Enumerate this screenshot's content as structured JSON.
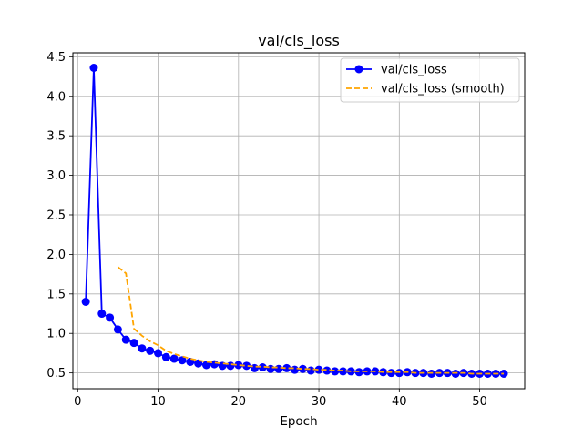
{
  "chart_data": {
    "type": "line",
    "title": "val/cls_loss",
    "xlabel": "Epoch",
    "ylabel": "",
    "xlim": [
      -0.6,
      55.6
    ],
    "ylim": [
      0.3,
      4.55
    ],
    "xticks": [
      0,
      10,
      20,
      30,
      40,
      50
    ],
    "yticks": [
      0.5,
      1.0,
      1.5,
      2.0,
      2.5,
      3.0,
      3.5,
      4.0,
      4.5
    ],
    "xtick_labels": [
      "0",
      "10",
      "20",
      "30",
      "40",
      "50"
    ],
    "ytick_labels": [
      "0.5",
      "1.0",
      "1.5",
      "2.0",
      "2.5",
      "3.0",
      "3.5",
      "4.0",
      "4.5"
    ],
    "grid": true,
    "legend_position": "top-right",
    "series": [
      {
        "name": "val/cls_loss",
        "color": "#0000ff",
        "style": "solid",
        "marker": "circle",
        "x": [
          1,
          2,
          3,
          4,
          5,
          6,
          7,
          8,
          9,
          10,
          11,
          12,
          13,
          14,
          15,
          16,
          17,
          18,
          19,
          20,
          21,
          22,
          23,
          24,
          25,
          26,
          27,
          28,
          29,
          30,
          31,
          32,
          33,
          34,
          35,
          36,
          37,
          38,
          39,
          40,
          41,
          42,
          43,
          44,
          45,
          46,
          47,
          48,
          49,
          50,
          51,
          52,
          53
        ],
        "y": [
          1.4,
          4.36,
          1.25,
          1.2,
          1.05,
          0.92,
          0.88,
          0.81,
          0.78,
          0.75,
          0.7,
          0.68,
          0.66,
          0.64,
          0.62,
          0.6,
          0.61,
          0.59,
          0.59,
          0.6,
          0.59,
          0.56,
          0.57,
          0.55,
          0.55,
          0.56,
          0.54,
          0.55,
          0.53,
          0.54,
          0.53,
          0.52,
          0.52,
          0.52,
          0.51,
          0.52,
          0.52,
          0.51,
          0.5,
          0.5,
          0.51,
          0.5,
          0.5,
          0.49,
          0.5,
          0.5,
          0.49,
          0.5,
          0.49,
          0.49,
          0.49,
          0.49,
          0.49
        ]
      },
      {
        "name": "val/cls_loss (smooth)",
        "color": "#ffa500",
        "style": "dashed",
        "marker": "none",
        "x": [
          5,
          6,
          7,
          8,
          9,
          10,
          11,
          12,
          13,
          14,
          15,
          16,
          17,
          18,
          19,
          20,
          21,
          22,
          23,
          24,
          25,
          26,
          27,
          28,
          29,
          30,
          31,
          32,
          33,
          34,
          35,
          36,
          37,
          38,
          39,
          40,
          41,
          42,
          43,
          44,
          45,
          46,
          47,
          48,
          49,
          50,
          51,
          52,
          53
        ],
        "y": [
          1.84,
          1.76,
          1.06,
          0.97,
          0.9,
          0.85,
          0.78,
          0.74,
          0.71,
          0.68,
          0.66,
          0.64,
          0.63,
          0.62,
          0.61,
          0.6,
          0.59,
          0.58,
          0.58,
          0.57,
          0.57,
          0.56,
          0.56,
          0.55,
          0.55,
          0.54,
          0.54,
          0.53,
          0.53,
          0.52,
          0.52,
          0.52,
          0.52,
          0.51,
          0.51,
          0.51,
          0.51,
          0.5,
          0.5,
          0.5,
          0.5,
          0.5,
          0.5,
          0.5,
          0.49,
          0.49,
          0.49,
          0.49,
          0.49
        ]
      }
    ]
  }
}
